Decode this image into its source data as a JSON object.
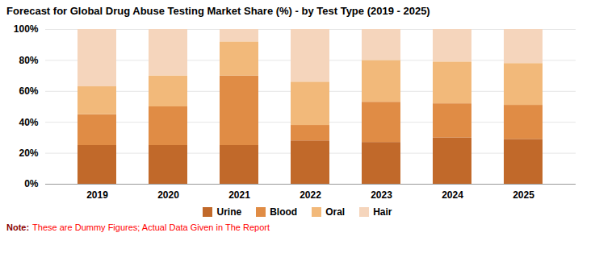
{
  "chart_data": {
    "type": "bar",
    "stacked": true,
    "title": "Forecast for Global Drug Abuse Testing Market Share (%) - by Test Type (2019 - 2025)",
    "categories": [
      "2019",
      "2020",
      "2021",
      "2022",
      "2023",
      "2024",
      "2025"
    ],
    "series": [
      {
        "name": "Urine",
        "color": "#C1692A",
        "values": [
          25,
          25,
          25,
          28,
          27,
          30,
          29
        ]
      },
      {
        "name": "Blood",
        "color": "#E08C45",
        "values": [
          20,
          25,
          45,
          10,
          26,
          22,
          22
        ]
      },
      {
        "name": "Oral",
        "color": "#F2B97A",
        "values": [
          18,
          20,
          22,
          28,
          27,
          27,
          27
        ]
      },
      {
        "name": "Hair",
        "color": "#F5D5BC",
        "values": [
          37,
          30,
          8,
          34,
          20,
          21,
          22
        ]
      }
    ],
    "ylim": [
      0,
      100
    ],
    "yticks": [
      {
        "value": 0,
        "label": "0%"
      },
      {
        "value": 20,
        "label": "20%"
      },
      {
        "value": 40,
        "label": "40%"
      },
      {
        "value": 60,
        "label": "60%"
      },
      {
        "value": 80,
        "label": "80%"
      },
      {
        "value": 100,
        "label": "100%"
      }
    ],
    "grid": true,
    "legend": "bottom",
    "annotations": [
      {
        "text": "Note:",
        "color": "#8B0000"
      },
      {
        "text": "These are Dummy Figures; Actual Data Given in The Report",
        "color": "#FF0000"
      }
    ]
  }
}
